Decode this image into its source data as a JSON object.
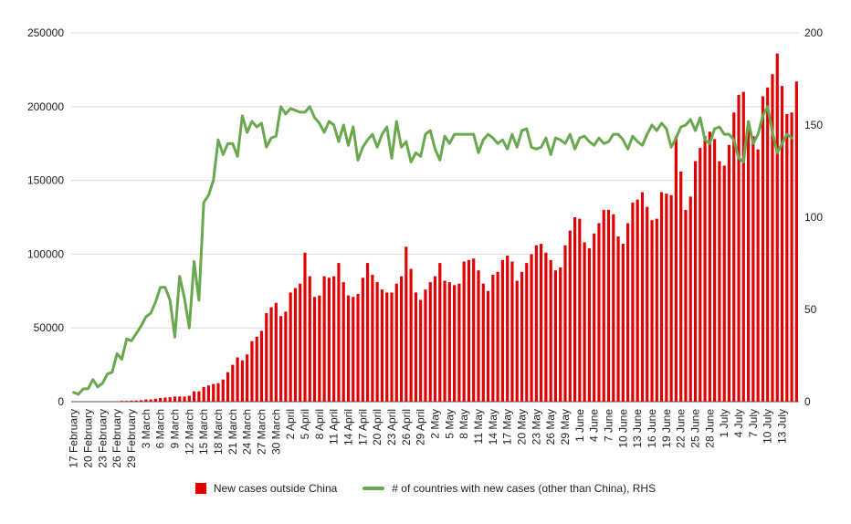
{
  "chart_data": {
    "type": "bar+line",
    "title": "",
    "xlabel": "",
    "colors": {
      "bars": "#e00000",
      "line": "#6aa84f",
      "grid": "#dcdcdc",
      "text": "#222222"
    },
    "axes": {
      "left": {
        "min": 0,
        "max": 250000,
        "ticks": [
          "0",
          "50000",
          "100000",
          "150000",
          "200000",
          "250000"
        ]
      },
      "right": {
        "min": 0,
        "max": 200,
        "ticks": [
          "0",
          "50",
          "100",
          "150",
          "200"
        ]
      },
      "x_tick_labels": [
        "17 February",
        "20 February",
        "23 February",
        "26 February",
        "29 February",
        "3 March",
        "6 March",
        "9 March",
        "12 March",
        "15 March",
        "18 March",
        "21 March",
        "24 March",
        "27 March",
        "30 March",
        "2 April",
        "5 April",
        "8 April",
        "11 April",
        "14 April",
        "17 April",
        "20 April",
        "23 April",
        "26 April",
        "29 April",
        "2 May",
        "5 May",
        "8 May",
        "11 May",
        "14 May",
        "17 May",
        "20 May",
        "23 May",
        "26 May",
        "29 May",
        "1 June",
        "4 June",
        "7 June",
        "10 June",
        "13 June",
        "16 June",
        "19 June",
        "22 June",
        "25 June",
        "28 June",
        "1 July",
        "4 July",
        "7 July",
        "10 July",
        "13 July"
      ],
      "x_tick_step_days": 3
    },
    "legend": {
      "position": "bottom"
    },
    "grid": true,
    "series": [
      {
        "name": "New cases outside China",
        "type": "bar",
        "axis": "left",
        "values": [
          0,
          0,
          0,
          0,
          0,
          0,
          0,
          0,
          200,
          300,
          500,
          500,
          700,
          800,
          1000,
          1500,
          1500,
          2000,
          2500,
          2800,
          3000,
          3500,
          3500,
          3500,
          4000,
          7000,
          7000,
          10000,
          11000,
          12000,
          12500,
          15000,
          20000,
          25000,
          30000,
          28000,
          32000,
          41000,
          44000,
          48000,
          60000,
          64000,
          67000,
          58000,
          61000,
          74000,
          77000,
          80000,
          101000,
          85000,
          71000,
          72000,
          85000,
          84000,
          85000,
          94000,
          81000,
          72000,
          71000,
          73000,
          84000,
          94000,
          86000,
          81000,
          76000,
          74000,
          74000,
          80000,
          85000,
          105000,
          90000,
          74000,
          69000,
          76000,
          81000,
          85000,
          94000,
          82000,
          81000,
          79000,
          80000,
          95000,
          96000,
          97000,
          89000,
          80000,
          75000,
          86000,
          88000,
          96000,
          99000,
          95000,
          82000,
          88000,
          94000,
          100000,
          106000,
          107000,
          101000,
          96000,
          89000,
          91000,
          106000,
          116000,
          125000,
          124000,
          108000,
          104000,
          114000,
          121000,
          130000,
          130000,
          127000,
          112000,
          107000,
          121000,
          135000,
          137000,
          142000,
          132000,
          123000,
          124000,
          142000,
          141000,
          140000,
          180000,
          156000,
          130000,
          139000,
          163000,
          172000,
          180000,
          183000,
          178000,
          163000,
          160000,
          174000,
          196000,
          208000,
          210000,
          190000,
          180000,
          171000,
          207000,
          213000,
          222000,
          236000,
          214000,
          195000,
          196000,
          217000
        ]
      },
      {
        "name": "# of countries with new cases (other than China), RHS",
        "type": "line",
        "axis": "right",
        "values": [
          5,
          4,
          7,
          7,
          12,
          8,
          10,
          15,
          16,
          26,
          23,
          34,
          33,
          37,
          41,
          46,
          48,
          54,
          62,
          62,
          55,
          35,
          68,
          56,
          40,
          76,
          55,
          108,
          112,
          120,
          142,
          134,
          140,
          140,
          133,
          155,
          146,
          152,
          149,
          151,
          138,
          143,
          144,
          160,
          156,
          159,
          158,
          157,
          157,
          160,
          154,
          151,
          146,
          152,
          150,
          141,
          150,
          139,
          149,
          131,
          138,
          142,
          145,
          138,
          145,
          149,
          132,
          152,
          138,
          141,
          130,
          135,
          133,
          145,
          147,
          137,
          131,
          144,
          140,
          145,
          145,
          145,
          145,
          145,
          135,
          142,
          145,
          143,
          140,
          142,
          137,
          145,
          138,
          147,
          148,
          138,
          137,
          138,
          143,
          134,
          143,
          142,
          140,
          145,
          137,
          143,
          144,
          141,
          139,
          143,
          140,
          141,
          145,
          145,
          142,
          137,
          144,
          141,
          139,
          145,
          150,
          147,
          151,
          148,
          138,
          143,
          149,
          150,
          153,
          147,
          154,
          142,
          140,
          148,
          149,
          145,
          145,
          142,
          132,
          130,
          152,
          140,
          145,
          155,
          160,
          146,
          135,
          140,
          145,
          143
        ]
      }
    ]
  },
  "legend_items": [
    {
      "label": "New cases outside China",
      "color": "#e00000",
      "kind": "bar"
    },
    {
      "label": "# of countries with new cases (other than China), RHS",
      "color": "#6aa84f",
      "kind": "line"
    }
  ]
}
